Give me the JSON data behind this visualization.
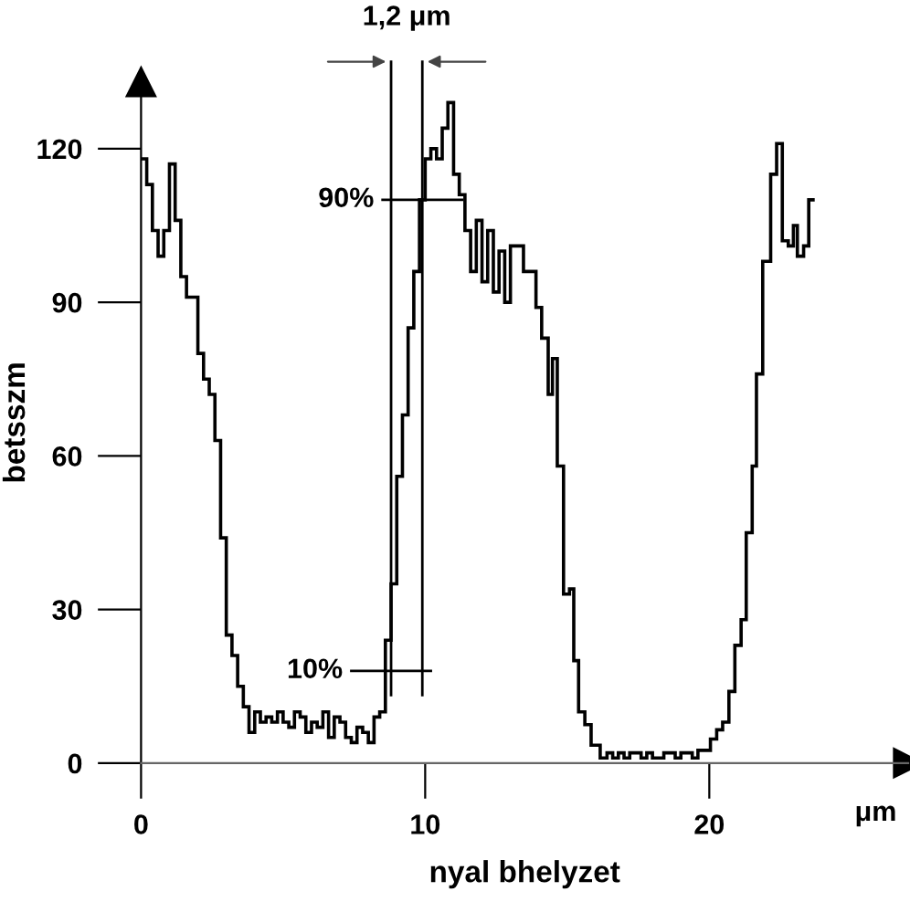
{
  "chart_data": {
    "type": "histogram",
    "xlabel": "nyal bhelyzet",
    "ylabel": "betsszm",
    "bins": [
      0,
      0.2,
      0.4,
      0.6,
      0.8,
      1.0,
      1.2,
      1.4,
      1.6,
      1.8,
      2.0,
      2.2,
      2.4,
      2.6,
      2.8,
      3.0,
      3.2,
      3.4,
      3.6,
      3.8,
      4.0,
      4.2,
      4.4,
      4.6,
      4.8,
      5.0,
      5.2,
      5.4,
      5.6,
      5.8,
      6.0,
      6.2,
      6.4,
      6.6,
      6.8,
      7.0,
      7.2,
      7.4,
      7.6,
      7.8,
      8.0,
      8.2,
      8.4,
      8.6,
      8.8,
      9.0,
      9.2,
      9.4,
      9.6,
      9.8,
      10.0,
      10.2,
      10.4,
      10.6,
      10.8,
      11.0,
      11.2,
      11.4,
      11.6,
      11.8,
      12.0,
      12.2,
      12.4,
      12.6,
      12.8,
      13.0,
      13.2,
      13.46,
      13.9,
      14.1,
      14.33,
      14.48,
      14.65,
      14.87,
      15.08,
      15.23,
      15.4,
      15.62,
      15.84,
      16.16,
      16.4,
      16.6,
      16.8,
      17.0,
      17.2,
      17.4,
      17.6,
      17.8,
      18.0,
      18.2,
      18.4,
      18.6,
      18.8,
      19.0,
      19.2,
      19.4,
      19.6,
      20.04,
      20.26,
      20.47,
      20.69,
      20.9,
      21.12,
      21.3,
      21.51,
      21.66,
      21.88,
      22.16,
      22.37,
      22.57,
      22.78,
      22.96,
      23.1,
      23.32,
      23.5,
      23.71
    ],
    "values": [
      118,
      113,
      104,
      99,
      104,
      117,
      106,
      95,
      91,
      91,
      80,
      75,
      72,
      63,
      44,
      25,
      21,
      15,
      11,
      6,
      10,
      8,
      9,
      8,
      10,
      8,
      7,
      10,
      9,
      6,
      8,
      7,
      10,
      5,
      9,
      8,
      5,
      4,
      7,
      6,
      4,
      9,
      10,
      24,
      35,
      56,
      68,
      85,
      96,
      110,
      118,
      120,
      118,
      124,
      129,
      115,
      111,
      104,
      96,
      106,
      94,
      104,
      92,
      100,
      90,
      101,
      101,
      96,
      89,
      83,
      72,
      79,
      58,
      33,
      34,
      20,
      10,
      7.5,
      3.5,
      1,
      2,
      1,
      2,
      1,
      2,
      2,
      1,
      2,
      1,
      1,
      2,
      2,
      1,
      2,
      2,
      1,
      2.5,
      4.7,
      6.5,
      8,
      14,
      23,
      28,
      45,
      58,
      76,
      98,
      115,
      121,
      102,
      101,
      105,
      99,
      101,
      110
    ],
    "color": "#000000",
    "xlim": [
      0,
      27
    ],
    "ylim": [
      0,
      133
    ],
    "xticks": [
      0,
      10,
      20
    ],
    "yticks": [
      0,
      30,
      60,
      90,
      120
    ],
    "grid": false,
    "ref_lines": [
      {
        "axis": "x",
        "value": 8.8,
        "label": null
      },
      {
        "axis": "x",
        "value": 9.9,
        "label": null
      }
    ],
    "annotations": [
      {
        "text": "90%",
        "x": 9.9,
        "y": 110
      },
      {
        "text": "10%",
        "x": 8.8,
        "y": 18
      },
      "1,2 μm",
      "μm"
    ]
  }
}
